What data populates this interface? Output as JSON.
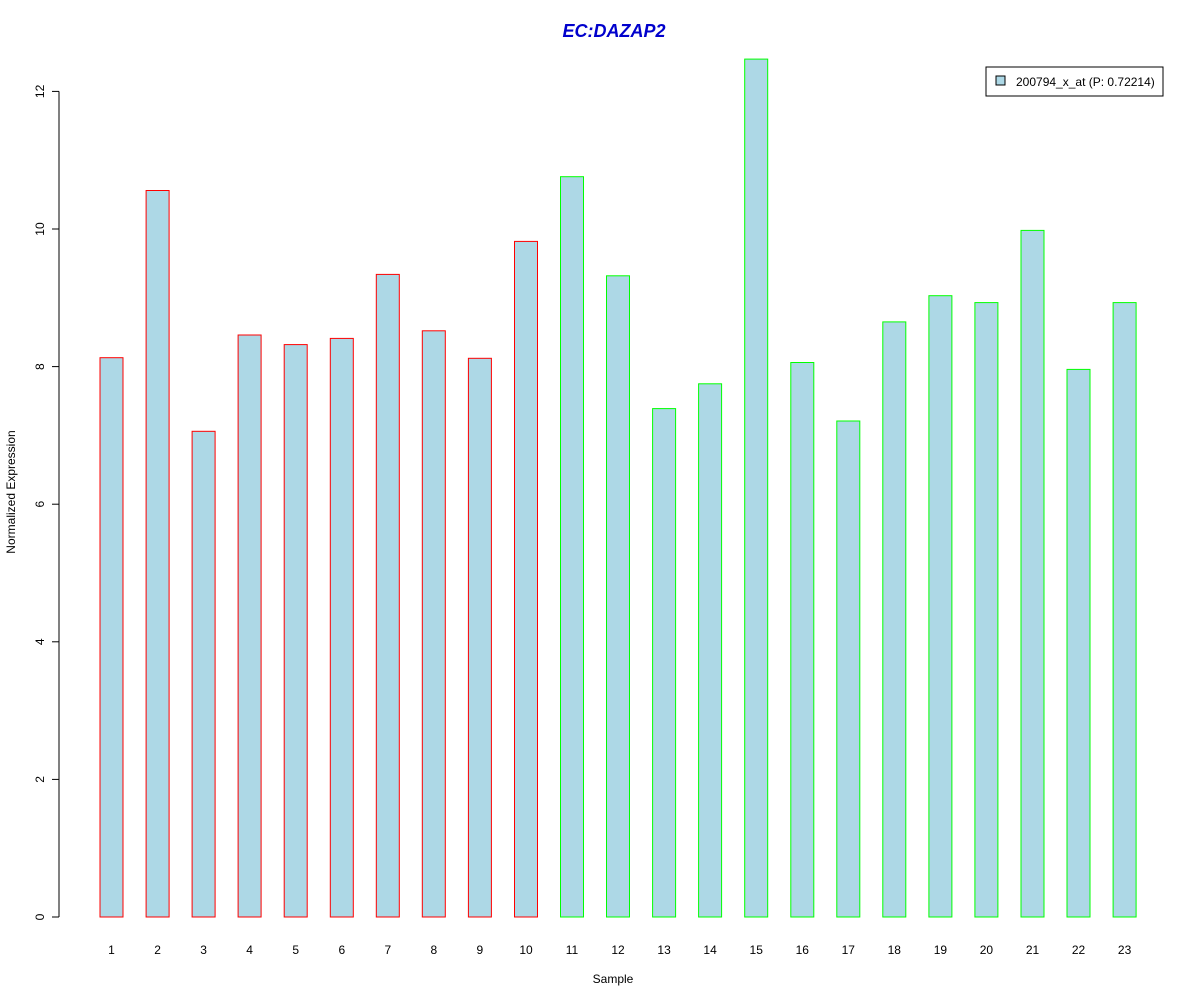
{
  "chart_data": {
    "type": "bar",
    "title": "EC:DAZAP2",
    "xlabel": "Sample",
    "ylabel": "Normalized Expression",
    "categories": [
      "1",
      "2",
      "3",
      "4",
      "5",
      "6",
      "7",
      "8",
      "9",
      "10",
      "11",
      "12",
      "13",
      "14",
      "15",
      "16",
      "17",
      "18",
      "19",
      "20",
      "21",
      "22",
      "23"
    ],
    "series": [
      {
        "name": "200794_x_at (P: 0.72214)",
        "values": [
          8.13,
          10.56,
          7.06,
          8.46,
          8.32,
          8.41,
          9.34,
          8.52,
          8.12,
          9.82,
          10.76,
          9.32,
          7.39,
          7.75,
          12.47,
          8.06,
          7.21,
          8.65,
          9.03,
          8.93,
          9.98,
          7.96,
          8.93
        ]
      }
    ],
    "group_border_colors": [
      "#ff0000",
      "#ff0000",
      "#ff0000",
      "#ff0000",
      "#ff0000",
      "#ff0000",
      "#ff0000",
      "#ff0000",
      "#ff0000",
      "#ff0000",
      "#00ff00",
      "#00ff00",
      "#00ff00",
      "#00ff00",
      "#00ff00",
      "#00ff00",
      "#00ff00",
      "#00ff00",
      "#00ff00",
      "#00ff00",
      "#00ff00",
      "#00ff00",
      "#00ff00"
    ],
    "yticks": [
      0,
      2,
      4,
      6,
      8,
      10,
      12
    ],
    "ylim": [
      0,
      12.47
    ],
    "grid": false,
    "legend_position": "top-right",
    "colors": {
      "bar_fill": "#add8e6",
      "title": "#0000cc",
      "axis": "#000000"
    }
  }
}
